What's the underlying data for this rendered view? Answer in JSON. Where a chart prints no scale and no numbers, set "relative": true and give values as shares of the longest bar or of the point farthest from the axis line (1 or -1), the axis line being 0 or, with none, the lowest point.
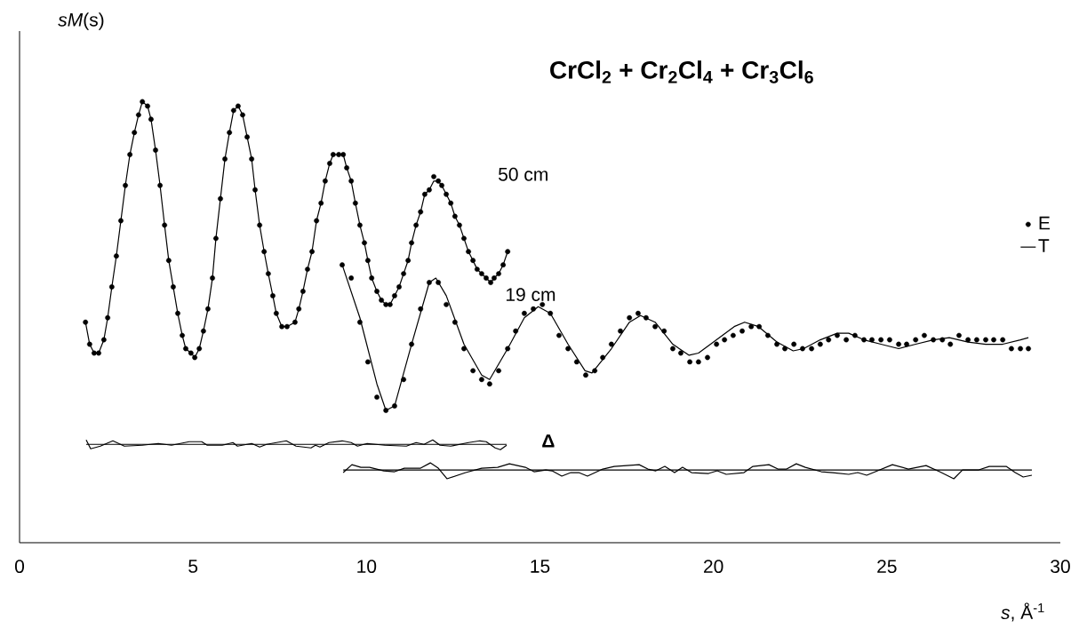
{
  "chart_data": {
    "type": "line",
    "title": "CrCl$_{2}$ + Cr$_{2}$Cl$_{4}$ + Cr$_{3}$Cl$_{6}$",
    "ylabel": "*sM*(s)",
    "xlabel": "*s*, Å$^{-1}$",
    "relative": true,
    "xlim": [
      0,
      30
    ],
    "xticks": [
      0,
      5,
      10,
      15,
      20,
      25,
      30
    ],
    "grid": false,
    "legend": "right",
    "annotations": [
      "50 cm",
      "19 cm",
      "Δ"
    ],
    "series": [
      {
        "name": "E",
        "type": "scatter",
        "marker": "circle",
        "color": "#000000",
        "x": [
          1.9,
          2.02,
          2.15,
          2.28,
          2.43,
          2.54,
          2.66,
          2.79,
          2.92,
          3.05,
          3.18,
          3.31,
          3.43,
          3.54,
          3.69,
          3.79,
          3.92,
          4.05,
          4.18,
          4.3,
          4.43,
          4.56,
          4.69,
          4.79,
          4.94,
          5.05,
          5.18,
          5.3,
          5.43,
          5.56,
          5.66,
          5.79,
          5.92,
          6.05,
          6.17,
          6.3,
          6.43,
          6.56,
          6.69,
          6.79,
          6.92,
          7.05,
          7.17,
          7.3,
          7.4,
          7.56,
          7.71,
          7.94,
          8.05,
          8.17,
          8.3,
          8.43,
          8.56,
          8.69,
          8.81,
          8.94,
          9.04,
          9.2,
          9.33,
          9.43,
          9.56,
          9.68,
          9.81,
          9.94,
          10.04,
          10.15,
          10.3,
          10.43,
          10.56,
          10.68,
          10.81,
          10.94,
          11.07,
          11.2,
          11.3,
          11.43,
          11.56,
          11.68,
          11.81,
          11.94,
          12.07,
          12.17,
          12.3,
          12.43,
          12.55,
          12.68,
          12.81,
          12.94,
          13.07,
          13.19,
          13.32,
          13.45,
          13.58,
          13.68,
          13.81,
          13.94,
          14.07
        ],
        "values": [
          0.5,
          0.45,
          0.43,
          0.43,
          0.46,
          0.51,
          0.58,
          0.65,
          0.73,
          0.81,
          0.88,
          0.93,
          0.97,
          1.0,
          0.99,
          0.96,
          0.89,
          0.81,
          0.72,
          0.64,
          0.58,
          0.52,
          0.47,
          0.44,
          0.43,
          0.42,
          0.44,
          0.48,
          0.53,
          0.6,
          0.69,
          0.78,
          0.87,
          0.93,
          0.98,
          0.99,
          0.97,
          0.92,
          0.87,
          0.8,
          0.72,
          0.66,
          0.61,
          0.56,
          0.52,
          0.49,
          0.49,
          0.5,
          0.53,
          0.57,
          0.62,
          0.66,
          0.73,
          0.77,
          0.82,
          0.86,
          0.88,
          0.88,
          0.88,
          0.85,
          0.82,
          0.77,
          0.72,
          0.68,
          0.64,
          0.6,
          0.57,
          0.55,
          0.54,
          0.54,
          0.56,
          0.58,
          0.61,
          0.64,
          0.68,
          0.72,
          0.75,
          0.79,
          0.8,
          0.83,
          0.82,
          0.81,
          0.79,
          0.77,
          0.74,
          0.72,
          0.69,
          0.66,
          0.64,
          0.62,
          0.61,
          0.6,
          0.59,
          0.6,
          0.61,
          0.63,
          0.66
        ]
      },
      {
        "name": "T",
        "color": "#000000",
        "x": [
          1.9,
          2.02,
          2.15,
          2.28,
          2.43,
          2.54,
          2.66,
          2.79,
          2.92,
          3.05,
          3.18,
          3.31,
          3.43,
          3.54,
          3.69,
          3.79,
          3.92,
          4.05,
          4.18,
          4.3,
          4.43,
          4.56,
          4.69,
          4.79,
          4.94,
          5.05,
          5.18,
          5.3,
          5.43,
          5.56,
          5.66,
          5.79,
          5.92,
          6.05,
          6.17,
          6.3,
          6.43,
          6.56,
          6.69,
          6.79,
          6.92,
          7.05,
          7.17,
          7.3,
          7.4,
          7.56,
          7.71,
          7.94,
          8.05,
          8.17,
          8.3,
          8.43,
          8.56,
          8.69,
          8.81,
          8.94,
          9.04,
          9.2,
          9.33,
          9.43,
          9.56,
          9.68,
          9.81,
          9.94,
          10.04,
          10.15,
          10.3,
          10.43,
          10.56,
          10.68,
          10.81,
          10.94,
          11.07,
          11.2,
          11.3,
          11.43,
          11.56,
          11.68,
          11.81,
          11.94,
          12.07,
          12.17,
          12.3,
          12.43,
          12.55,
          12.68,
          12.81,
          12.94,
          13.07,
          13.19,
          13.32,
          13.45,
          13.58,
          13.68,
          13.81,
          13.94,
          14.07
        ],
        "values": [
          0.5,
          0.45,
          0.43,
          0.43,
          0.46,
          0.51,
          0.58,
          0.65,
          0.73,
          0.81,
          0.88,
          0.93,
          0.97,
          1.0,
          0.99,
          0.96,
          0.89,
          0.81,
          0.72,
          0.64,
          0.58,
          0.52,
          0.47,
          0.44,
          0.43,
          0.42,
          0.44,
          0.48,
          0.53,
          0.6,
          0.69,
          0.78,
          0.87,
          0.93,
          0.98,
          0.99,
          0.97,
          0.92,
          0.87,
          0.8,
          0.72,
          0.66,
          0.61,
          0.56,
          0.52,
          0.49,
          0.49,
          0.5,
          0.53,
          0.57,
          0.62,
          0.66,
          0.73,
          0.77,
          0.82,
          0.86,
          0.88,
          0.88,
          0.88,
          0.85,
          0.82,
          0.77,
          0.72,
          0.68,
          0.64,
          0.6,
          0.57,
          0.55,
          0.54,
          0.54,
          0.56,
          0.58,
          0.61,
          0.64,
          0.68,
          0.72,
          0.75,
          0.79,
          0.8,
          0.82,
          0.82,
          0.81,
          0.79,
          0.77,
          0.74,
          0.72,
          0.69,
          0.66,
          0.64,
          0.62,
          0.61,
          0.6,
          0.59,
          0.6,
          0.61,
          0.63,
          0.66
        ]
      },
      {
        "type": "scatter",
        "marker": "circle",
        "color": "#000000",
        "x": [
          9.3,
          9.56,
          9.81,
          10.04,
          10.3,
          10.56,
          10.81,
          11.07,
          11.3,
          11.56,
          11.81,
          12.07,
          12.3,
          12.55,
          12.81,
          13.07,
          13.32,
          13.55,
          13.81,
          14.07,
          14.3,
          14.55,
          14.81,
          15.07,
          15.3,
          15.55,
          15.81,
          16.06,
          16.32,
          16.58,
          16.81,
          17.06,
          17.32,
          17.58,
          17.83,
          18.06,
          18.32,
          18.58,
          18.83,
          19.06,
          19.32,
          19.57,
          19.83,
          20.09,
          20.32,
          20.57,
          20.83,
          21.09,
          21.32,
          21.57,
          21.83,
          22.06,
          22.32,
          22.57,
          22.83,
          23.08,
          23.32,
          23.57,
          23.83,
          24.08,
          24.34,
          24.57,
          24.83,
          25.08,
          25.34,
          25.57,
          25.83,
          26.08,
          26.34,
          26.6,
          26.83,
          27.08,
          27.34,
          27.59,
          27.85,
          28.08,
          28.34,
          28.59,
          28.85,
          29.08
        ],
        "values": [
          0.63,
          0.6,
          0.5,
          0.41,
          0.33,
          0.3,
          0.31,
          0.37,
          0.45,
          0.53,
          0.59,
          0.59,
          0.54,
          0.5,
          0.44,
          0.39,
          0.37,
          0.36,
          0.39,
          0.44,
          0.48,
          0.52,
          0.53,
          0.54,
          0.52,
          0.47,
          0.44,
          0.41,
          0.38,
          0.39,
          0.42,
          0.45,
          0.48,
          0.51,
          0.52,
          0.51,
          0.49,
          0.48,
          0.44,
          0.43,
          0.41,
          0.41,
          0.42,
          0.45,
          0.46,
          0.47,
          0.48,
          0.49,
          0.49,
          0.47,
          0.45,
          0.44,
          0.45,
          0.44,
          0.44,
          0.45,
          0.46,
          0.47,
          0.46,
          0.47,
          0.46,
          0.46,
          0.46,
          0.46,
          0.45,
          0.45,
          0.46,
          0.47,
          0.46,
          0.46,
          0.45,
          0.47,
          0.46,
          0.46,
          0.46,
          0.46,
          0.46,
          0.44,
          0.44,
          0.44
        ]
      },
      {
        "color": "#000000",
        "x": [
          9.3,
          9.81,
          10.3,
          10.56,
          10.81,
          11.3,
          11.81,
          12.0,
          12.3,
          12.81,
          13.32,
          13.55,
          14.07,
          14.55,
          14.95,
          15.3,
          15.81,
          16.3,
          16.5,
          17.06,
          17.58,
          17.9,
          18.32,
          18.83,
          19.3,
          19.57,
          20.09,
          20.6,
          20.9,
          21.3,
          21.83,
          22.3,
          22.6,
          23.08,
          23.57,
          23.9,
          24.34,
          24.83,
          25.34,
          25.83,
          26.34,
          26.8,
          27.34,
          27.85,
          28.34,
          28.85,
          29.08
        ],
        "values": [
          0.63,
          0.51,
          0.36,
          0.3,
          0.31,
          0.45,
          0.59,
          0.6,
          0.56,
          0.45,
          0.38,
          0.37,
          0.44,
          0.51,
          0.535,
          0.52,
          0.45,
          0.39,
          0.385,
          0.44,
          0.5,
          0.515,
          0.5,
          0.45,
          0.425,
          0.43,
          0.46,
          0.49,
          0.5,
          0.49,
          0.455,
          0.435,
          0.44,
          0.46,
          0.475,
          0.475,
          0.46,
          0.45,
          0.44,
          0.45,
          0.46,
          0.465,
          0.455,
          0.45,
          0.45,
          0.46,
          0.465
        ]
      },
      {
        "type": "line",
        "color": "#000000",
        "x": [
          1.92,
          14.04
        ],
        "values": [
          0.223,
          0.223
        ]
      },
      {
        "type": "line",
        "color": "#000000",
        "x": [
          1.92,
          2.05,
          2.33,
          2.69,
          3.02,
          3.54,
          4.0,
          4.38,
          4.89,
          5.25,
          5.41,
          5.84,
          6.15,
          6.28,
          6.69,
          6.92,
          7.12,
          7.69,
          7.97,
          8.4,
          8.53,
          8.66,
          8.92,
          9.3,
          9.56,
          9.74,
          10.02,
          10.53,
          11.15,
          11.43,
          11.66,
          11.91,
          12.12,
          12.43,
          12.94,
          13.27,
          13.45,
          13.71,
          13.86,
          14.04
        ],
        "values": [
          0.233,
          0.213,
          0.219,
          0.231,
          0.219,
          0.221,
          0.225,
          0.221,
          0.229,
          0.229,
          0.221,
          0.221,
          0.227,
          0.219,
          0.225,
          0.217,
          0.223,
          0.231,
          0.219,
          0.215,
          0.221,
          0.217,
          0.227,
          0.231,
          0.227,
          0.219,
          0.225,
          0.221,
          0.219,
          0.227,
          0.223,
          0.233,
          0.221,
          0.219,
          0.227,
          0.231,
          0.229,
          0.215,
          0.211,
          0.221
        ]
      },
      {
        "type": "line",
        "color": "#000000",
        "x": [
          9.33,
          29.18
        ],
        "values": [
          0.165,
          0.165
        ]
      },
      {
        "type": "line",
        "color": "#000000",
        "x": [
          9.33,
          9.58,
          9.84,
          10.09,
          10.5,
          10.81,
          11.09,
          11.56,
          11.84,
          12.07,
          12.32,
          12.86,
          13.32,
          13.78,
          14.12,
          14.58,
          14.83,
          15.17,
          15.35,
          15.63,
          15.89,
          16.12,
          16.37,
          16.81,
          17.14,
          17.86,
          18.11,
          18.34,
          18.6,
          18.88,
          19.11,
          19.37,
          19.86,
          20.11,
          20.37,
          20.88,
          21.14,
          21.6,
          21.86,
          22.11,
          22.39,
          22.65,
          23.11,
          23.44,
          23.9,
          24.16,
          24.42,
          24.67,
          25.16,
          25.62,
          26.13,
          26.52,
          26.93,
          27.18,
          27.65,
          27.95,
          28.44,
          28.7,
          28.93,
          29.18
        ],
        "values": [
          0.159,
          0.177,
          0.171,
          0.171,
          0.163,
          0.161,
          0.169,
          0.169,
          0.181,
          0.169,
          0.145,
          0.159,
          0.169,
          0.171,
          0.179,
          0.171,
          0.161,
          0.165,
          0.163,
          0.151,
          0.159,
          0.159,
          0.151,
          0.167,
          0.173,
          0.177,
          0.167,
          0.163,
          0.173,
          0.159,
          0.171,
          0.159,
          0.157,
          0.163,
          0.155,
          0.159,
          0.173,
          0.177,
          0.167,
          0.167,
          0.179,
          0.171,
          0.161,
          0.159,
          0.155,
          0.159,
          0.153,
          0.161,
          0.177,
          0.167,
          0.175,
          0.161,
          0.145,
          0.165,
          0.165,
          0.173,
          0.173,
          0.159,
          0.149,
          0.153
        ]
      }
    ]
  }
}
